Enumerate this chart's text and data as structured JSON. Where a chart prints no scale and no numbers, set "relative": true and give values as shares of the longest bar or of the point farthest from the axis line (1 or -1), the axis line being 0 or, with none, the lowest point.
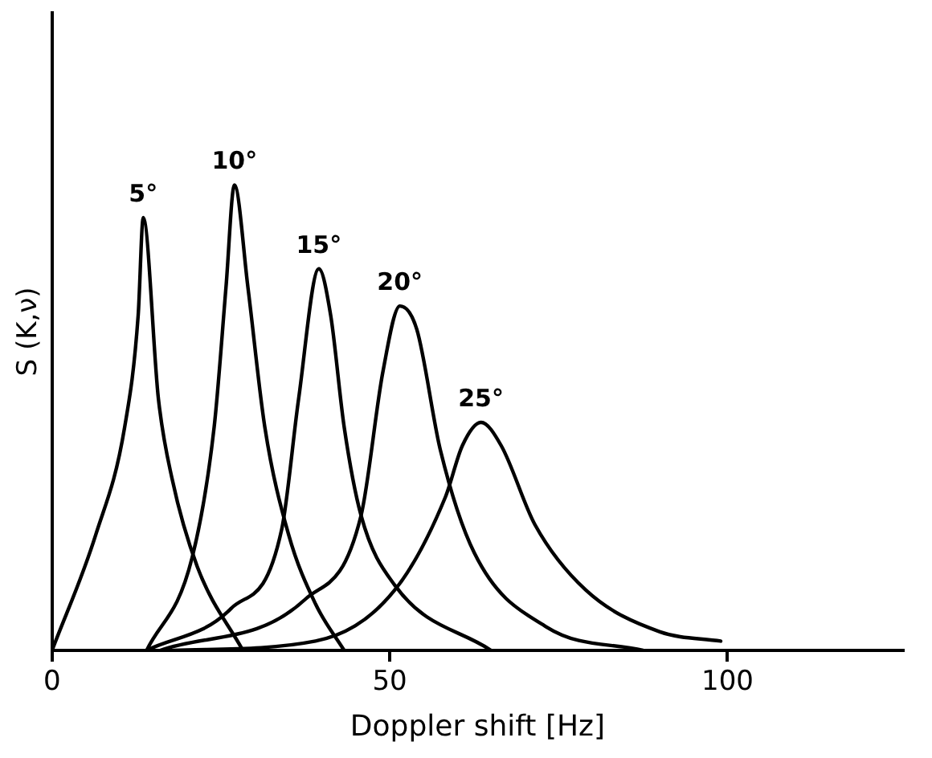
{
  "chart_data": {
    "type": "line",
    "xlabel": "Doppler shift [Hz]",
    "ylabel": "S (K,ν)",
    "relative": true,
    "xlim": [
      0,
      126
    ],
    "xticks": [
      0,
      50,
      100
    ],
    "tick_labels": "x",
    "grid": false,
    "legend": false,
    "marker": "none",
    "line_style": "solid",
    "series": [
      {
        "name": "5°",
        "color": "#000000",
        "x": [
          0,
          6.5,
          10.75,
          12.75,
          13.5,
          15.75,
          17.75,
          21.5,
          28.25
        ],
        "values": [
          0,
          0.25,
          0.48,
          0.72,
          0.93,
          0.54,
          0.37,
          0.18,
          0
        ]
      },
      {
        "name": "10°",
        "color": "#000000",
        "x": [
          14,
          20.75,
          24,
          25.75,
          27,
          29,
          31.5,
          35,
          39,
          43.25
        ],
        "values": [
          0,
          0.2,
          0.48,
          0.78,
          1,
          0.78,
          0.48,
          0.25,
          0.1,
          0
        ]
      },
      {
        "name": "15°",
        "color": "#000000",
        "x": [
          14,
          26.5,
          34,
          36.5,
          39.5,
          41.25,
          43.25,
          45.75,
          50.75,
          65
        ],
        "values": [
          0,
          0.09,
          0.26,
          0.54,
          0.82,
          0.72,
          0.48,
          0.29,
          0.14,
          0
        ]
      },
      {
        "name": "20°",
        "color": "#000000",
        "x": [
          16,
          37.5,
          45.75,
          49,
          51.5,
          54,
          57.5,
          62.5,
          73.25,
          87.5
        ],
        "values": [
          0,
          0.11,
          0.29,
          0.6,
          0.74,
          0.69,
          0.43,
          0.21,
          0.05,
          0
        ]
      },
      {
        "name": "25°",
        "color": "#000000",
        "x": [
          18,
          39,
          50.75,
          58.25,
          60.75,
          63.5,
          66.5,
          71.5,
          79,
          90,
          99
        ],
        "values": [
          0,
          0.02,
          0.13,
          0.33,
          0.44,
          0.49,
          0.44,
          0.27,
          0.13,
          0.04,
          0.02
        ]
      }
    ]
  }
}
